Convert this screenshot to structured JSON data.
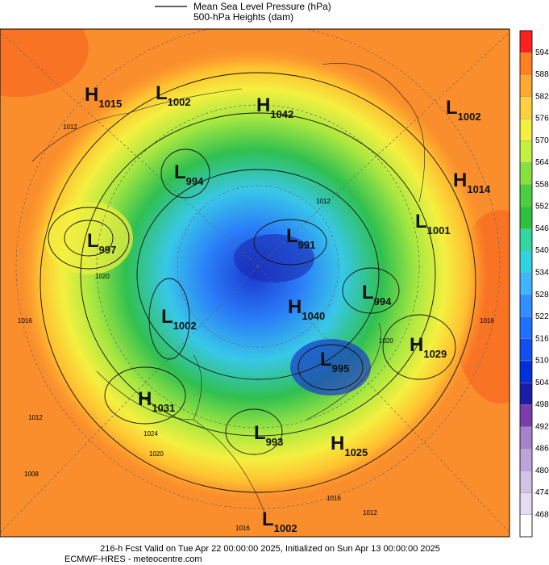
{
  "header": {
    "pressure_label": "Mean Sea Level Pressure (hPa)",
    "height_label": "500-hPa Heights (dam)"
  },
  "centers": [
    {
      "type": "H",
      "value": 1015
    },
    {
      "type": "L",
      "value": 1002
    },
    {
      "type": "H",
      "value": 1042
    },
    {
      "type": "L",
      "value": 1002
    },
    {
      "type": "H",
      "value": 1014
    },
    {
      "type": "L",
      "value": 994
    },
    {
      "type": "L",
      "value": 1001
    },
    {
      "type": "L",
      "value": 997
    },
    {
      "type": "L",
      "value": 991
    },
    {
      "type": "L",
      "value": 994
    },
    {
      "type": "H",
      "value": 1040
    },
    {
      "type": "L",
      "value": 1002
    },
    {
      "type": "H",
      "value": 1029
    },
    {
      "type": "L",
      "value": 995
    },
    {
      "type": "H",
      "value": 1031
    },
    {
      "type": "L",
      "value": 993
    },
    {
      "type": "H",
      "value": 1025
    },
    {
      "type": "L",
      "value": 1002
    }
  ],
  "isobar_labels": [
    1012,
    1020,
    1016,
    1012,
    1024,
    1020,
    1008,
    1016,
    1012,
    1016,
    1016,
    1020,
    1012
  ],
  "colorbar": {
    "levels": [
      468,
      474,
      480,
      486,
      492,
      498,
      504,
      510,
      516,
      522,
      528,
      534,
      540,
      546,
      552,
      558,
      564,
      570,
      576,
      582,
      588,
      594
    ],
    "colors": [
      "#ffffff",
      "#e6dcef",
      "#d2c2e6",
      "#bca4da",
      "#a482cc",
      "#7c3cb0",
      "#1c1ca8",
      "#0030d8",
      "#1050f0",
      "#2070ff",
      "#3090ff",
      "#40b4ff",
      "#30d4e0",
      "#30d8a0",
      "#30c040",
      "#48d040",
      "#88e040",
      "#c4f040",
      "#f4f040",
      "#ffd040",
      "#ffa830",
      "#ff8020",
      "#ff2020"
    ]
  },
  "footer": {
    "valid": "216-h Fcst Valid on Tue Apr 22 00:00:00 2025, Initialized on Sun Apr 13 00:00:00 2025",
    "model": "ECMWF-HRES  - meteocentre.com"
  }
}
